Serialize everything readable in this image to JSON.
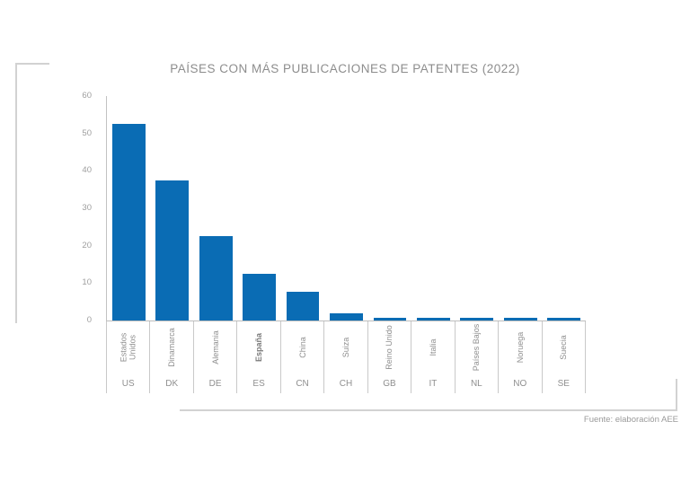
{
  "figure": {
    "source_note": "Fuente: elaboración AEE"
  },
  "colors": {
    "bar": "#0a6cb4",
    "title_text": "#8d8d8d",
    "axis_line": "#c2c2c2",
    "tick_text": "#9e9e9e",
    "label_text": "#8f8f8f",
    "cell_border": "#c9c9c9",
    "decor_line": "#d2d2d2",
    "source_text": "#9a9a9a"
  },
  "chart_data": {
    "type": "bar",
    "title": "PAÍSES CON MÁS PUBLICACIONES DE PATENTES (2022)",
    "categories": [
      "Estados Unidos",
      "Dinamarca",
      "Alemania",
      "España",
      "China",
      "Suiza",
      "Reino Unido",
      "Italia",
      "Países Bajos",
      "Noruega",
      "Suecia"
    ],
    "category_codes": [
      "US",
      "DK",
      "DE",
      "ES",
      "CN",
      "CH",
      "GB",
      "IT",
      "NL",
      "NO",
      "SE"
    ],
    "values": [
      52.5,
      37.5,
      22.5,
      12.5,
      7.8,
      2,
      0.8,
      0.8,
      0.8,
      0.8,
      0.8
    ],
    "emphasized_category": "España",
    "xlabel": "",
    "ylabel": "",
    "yticks": [
      0,
      10,
      20,
      30,
      40,
      50,
      60
    ],
    "ylim": [
      0,
      60
    ],
    "grid": false,
    "legend": false
  }
}
